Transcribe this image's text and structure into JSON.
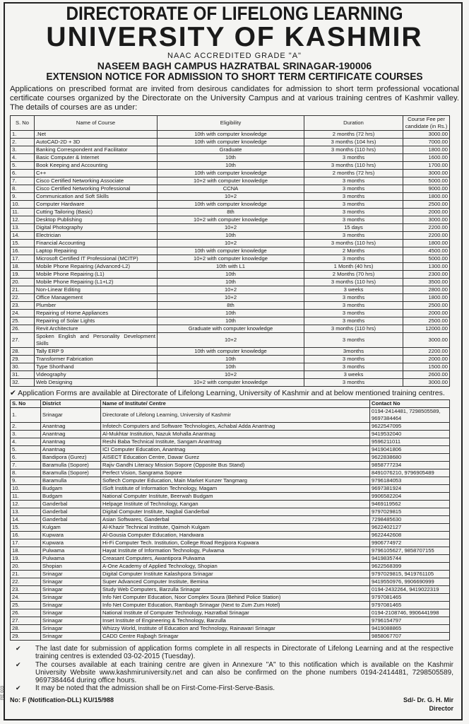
{
  "header": {
    "directorate": "DIRECTORATE OF LIFELONG LEARNING",
    "university": "UNIVERSITY OF KASHMIR",
    "accreditation": "NAAC ACCREDITED GRADE \"A\"",
    "campus": "NASEEM BAGH CAMPUS HAZRATBAL SRINAGAR-190006",
    "notice_title": "EXTENSION NOTICE FOR ADMISSION TO SHORT TERM CERTIFICATE COURSES"
  },
  "intro": "Applications on prescribed format are invited from desirous candidates for admission to short term professional vocational certificate courses organized by the Directorate on the University Campus and at various training centres of Kashmir valley. The details of courses are as under:",
  "courses": {
    "headers": [
      "S. No",
      "Name of Course",
      "Eligibility",
      "Duration",
      "Course Fee per candidate (in Rs.)"
    ],
    "rows": [
      [
        "1.",
        ".Net",
        "10th with computer knowledge",
        "2 months (72 hrs)",
        "3000.00"
      ],
      [
        "2.",
        "AutoCAD-2D + 3D",
        "10th with computer knowledge",
        "3 months (104 hrs)",
        "7000.00"
      ],
      [
        "3.",
        "Banking Correspondent and Facilitator",
        "Graduate",
        "3 months (110 hrs)",
        "1800.00"
      ],
      [
        "4.",
        "Basic Computer & Internet",
        "10th",
        "3 months",
        "1600.00"
      ],
      [
        "5.",
        "Book Keeping and Accounting",
        "10th",
        "3 months (110 hrs)",
        "1700.00"
      ],
      [
        "6.",
        "C++",
        "10th with computer knowledge",
        "2 months (72 hrs)",
        "3000.00"
      ],
      [
        "7.",
        "Cisco Certified Networking Associate",
        "10+2 with computer knowledge",
        "3 months",
        "5000.00"
      ],
      [
        "8.",
        "Cisco Certified Networking Professional",
        "CCNA",
        "3 months",
        "9000.00"
      ],
      [
        "9.",
        "Communication and Soft Skills",
        "10+2",
        "3 months",
        "1800.00"
      ],
      [
        "10.",
        "Computer Hardware",
        "10th with computer knowledge",
        "3 months",
        "2500.00"
      ],
      [
        "11.",
        "Cutting Tailoring (Basic)",
        "8th",
        "3 months",
        "2000.00"
      ],
      [
        "12.",
        "Desktop Publishing",
        "10+2 with computer knowledge",
        "3 months",
        "3000.00"
      ],
      [
        "13.",
        "Digital Photography",
        "10+2",
        "15 days",
        "2200.00"
      ],
      [
        "14.",
        "Electrician",
        "10th",
        "3 months",
        "2200.00"
      ],
      [
        "15.",
        "Financial Accounting",
        "10+2",
        "3 months (110 hrs)",
        "1800.00"
      ],
      [
        "16.",
        "Laptop Repairing",
        "10th with computer knowledge",
        "2 Months",
        "4500.00"
      ],
      [
        "17.",
        "Microsoft Certified IT Professional (MCITP)",
        "10+2 with computer knowledge",
        "3 months",
        "5000.00"
      ],
      [
        "18.",
        "Mobile Phone Repairing (Advanced-L2)",
        "10th with L1",
        "1 Month (40 hrs)",
        "1300.00"
      ],
      [
        "19.",
        "Mobile Phone Repairing (L1)",
        "10th",
        "2 Months (70 hrs)",
        "2300.00"
      ],
      [
        "20.",
        "Mobile Phone Repairing (L1+L2)",
        "10th",
        "3 months (110 hrs)",
        "3500.00"
      ],
      [
        "21.",
        "Non-Linear Editing",
        "10+2",
        "3 weeks",
        "2800.00"
      ],
      [
        "22.",
        "Office Management",
        "10+2",
        "3 months",
        "1800.00"
      ],
      [
        "23.",
        "Plumber",
        "8th",
        "3 months",
        "2500.00"
      ],
      [
        "24.",
        "Repairing of Home Appliances",
        "10th",
        "3 months",
        "2000.00"
      ],
      [
        "25.",
        "Repairing of Solar Lights",
        "10th",
        "3 months",
        "2500.00"
      ],
      [
        "26.",
        "Revit Architecture",
        "Graduate with computer knowledge",
        "3 months (110 hrs)",
        "12000.00"
      ],
      [
        "27.",
        "Spoken English and Personality Development Skills",
        "10+2",
        "3 months",
        "3000.00"
      ],
      [
        "28.",
        "Tally ERP 9",
        "10th with computer knowledge",
        "3months",
        "2200.00"
      ],
      [
        "29.",
        "Transformer Fabrication",
        "10th",
        "3 months",
        "2000.00"
      ],
      [
        "30.",
        "Type Shorthand",
        "10th",
        "3 months",
        "1500.00"
      ],
      [
        "31.",
        "Videography",
        "10+2",
        "3 weeks",
        "2600.00"
      ],
      [
        "32.",
        "Web Designing",
        "10+2 with computer knowledge",
        "3 months",
        "3000.00"
      ]
    ]
  },
  "forms_note": "Application Forms are available at Directorate of Lifelong Learning, University of Kashmir and at below mentioned training centres.",
  "centres": {
    "headers": [
      "S. No",
      "District",
      "Name of Institute/ Centre",
      "Contact No"
    ],
    "rows": [
      [
        "1.",
        "Srinagar",
        "Directorate of Lifelong Learning, University of Kashmir",
        "0194-2414481, 7298505589, 9697384464"
      ],
      [
        "2.",
        "Anantnag",
        "Infotech Computers and Software Technologies, Achabal Adda Anantnag",
        "9622547095"
      ],
      [
        "3.",
        "Anantnag",
        "Al-Mukhtar Institution, Nazuk Mohalla Anantnag",
        "9419532040"
      ],
      [
        "4.",
        "Anantnag",
        "Reshi Baba Technical Institute, Sangam Anantnag",
        "9596211011"
      ],
      [
        "5.",
        "Anantnag",
        "ICI Computer Education, Anantnag",
        "9419041806"
      ],
      [
        "6.",
        "Bandipora (Gurez)",
        "AISECT Education Centre, Dawar Gurez",
        "9622838680"
      ],
      [
        "7.",
        "Baramulla (Sopore)",
        "Rajiv Gandhi Literacy Mission Sopore (Opposite Bus Stand)",
        "9858777234"
      ],
      [
        "8.",
        "Baramulla (Sopore)",
        "Perfect Vision, Sangrama Sopore",
        "8491076210, 9796905489"
      ],
      [
        "9.",
        "Baramulla",
        "Softech Computer Education, Main Market Kunzer Tangmarg",
        "9796184053"
      ],
      [
        "10.",
        "Budgam",
        "ISoft Institute of Information Technology, Magam",
        "9697381924"
      ],
      [
        "11.",
        "Budgam",
        "National Computer Institute, Beerwah Budgam",
        "9906582204"
      ],
      [
        "12.",
        "Ganderbal",
        "Helpage Institute of Technology, Kangan",
        "9469119562"
      ],
      [
        "13.",
        "Ganderbal",
        "Digital Computer Institute, Nagbal Ganderbal",
        "9797029815"
      ],
      [
        "14.",
        "Ganderbal",
        "Asian Softwares, Ganderbal",
        "7298485630"
      ],
      [
        "15.",
        "Kulgam",
        "Al-Khazir Technical Institute, Qaimoh Kulgam",
        "9622402127"
      ],
      [
        "16.",
        "Kupwara",
        "Al-Gousia Computer Education, Handwara",
        "9622442608"
      ],
      [
        "17.",
        "Kupwara",
        "Hi-Fi Computer Tech. Institution, College Road Regipora Kupwara",
        "9906774972"
      ],
      [
        "18.",
        "Pulwama",
        "Hayat Institute of Information Technology, Pulwama",
        "9796105627, 9858707155"
      ],
      [
        "19.",
        "Pulwama",
        "Creasant Computers, Awantipora Pulwama",
        "9419835744"
      ],
      [
        "20.",
        "Shopian",
        "A-One Academy of Applied Technology, Shopian",
        "9622568399"
      ],
      [
        "21.",
        "Srinagar",
        "Digital Computer Institute Kalashpora Srinagar",
        "9797029815, 9419761105"
      ],
      [
        "22.",
        "Srinagar",
        "Super Advanced Computer Institute, Bemina",
        "9419550976, 9906690999"
      ],
      [
        "23.",
        "Srinagar",
        "Study Web Computers, Barzulla Srinagar",
        "0194-2432264, 9419022319"
      ],
      [
        "24.",
        "Srinagar",
        "Info Net Computer Education, Noor Complex Soura (Behind Police Station)",
        "9797081465"
      ],
      [
        "25.",
        "Srinagar",
        "Info Net Computer Education, Rambagh Srinagar (Next to Zum Zum Hotel)",
        "9797081465"
      ],
      [
        "26.",
        "Srinagar",
        "National Institute of Computer Technology, Hazratbal Srinagar",
        "0194-2108746, 9906441998"
      ],
      [
        "27.",
        "Srinagar",
        "Inset Institute of Engineering & Technology, Barzulla",
        "9796154797"
      ],
      [
        "28.",
        "Srinagar",
        "Whizzy World, Institute of Education and Technology, Rainawari Srinagar",
        "9419088865"
      ],
      [
        "29.",
        "Srinagar",
        "CADD Centre Rajbagh Srinagar",
        "9858067707"
      ]
    ]
  },
  "notes": [
    "The last date for submission of application forms complete in all respects in Directorate of Lifelong Learning and at the respective training centres is extended 03-02-2015 (Tuesday).",
    "The courses available at each training centre are given in Annexure \"A\" to this notification which is available on the Kashmir University Website www.kashmiruniversity.net and can also be confirmed on the phone numbers 0194-2414481, 7298505589, 9697384464 during office hours.",
    "It may be noted that the admission shall be on First-Come-First-Serve-Basis."
  ],
  "footer": {
    "reference": "No: F (Notification-DLL) KU/15/988",
    "signatory": "Sd/- Dr. G. H. Mir",
    "designation": "Director",
    "side_code": "RE 003"
  },
  "icons": {
    "bullet": "check-mark-icon"
  }
}
